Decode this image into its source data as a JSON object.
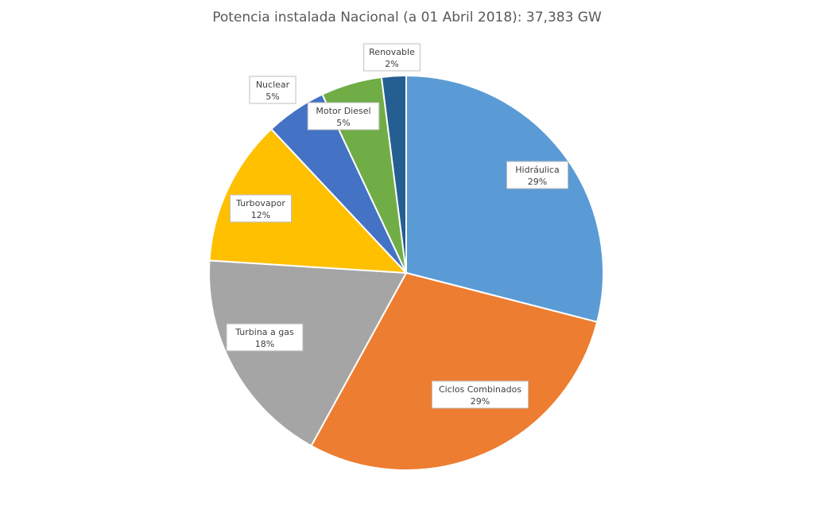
{
  "chart_data": {
    "type": "pie",
    "title": "Potencia instalada Nacional (a 01 Abril 2018): 37,383 GW",
    "start_angle": "top, clockwise",
    "slices": [
      {
        "label": "Hidráulica",
        "value": 29,
        "display": "29%",
        "color": "#5B9BD5"
      },
      {
        "label": "Ciclos Combinados",
        "value": 29,
        "display": "29%",
        "color": "#ED7D31"
      },
      {
        "label": "Turbina a gas",
        "value": 18,
        "display": "18%",
        "color": "#A5A5A5"
      },
      {
        "label": "Turbovapor",
        "value": 12,
        "display": "12%",
        "color": "#FFC000"
      },
      {
        "label": "Nuclear",
        "value": 5,
        "display": "5%",
        "color": "#4472C4"
      },
      {
        "label": "Motor Diesel",
        "value": 5,
        "display": "5%",
        "color": "#70AD47"
      },
      {
        "label": "Renovable",
        "value": 2,
        "display": "2%",
        "color": "#255E91"
      }
    ]
  }
}
